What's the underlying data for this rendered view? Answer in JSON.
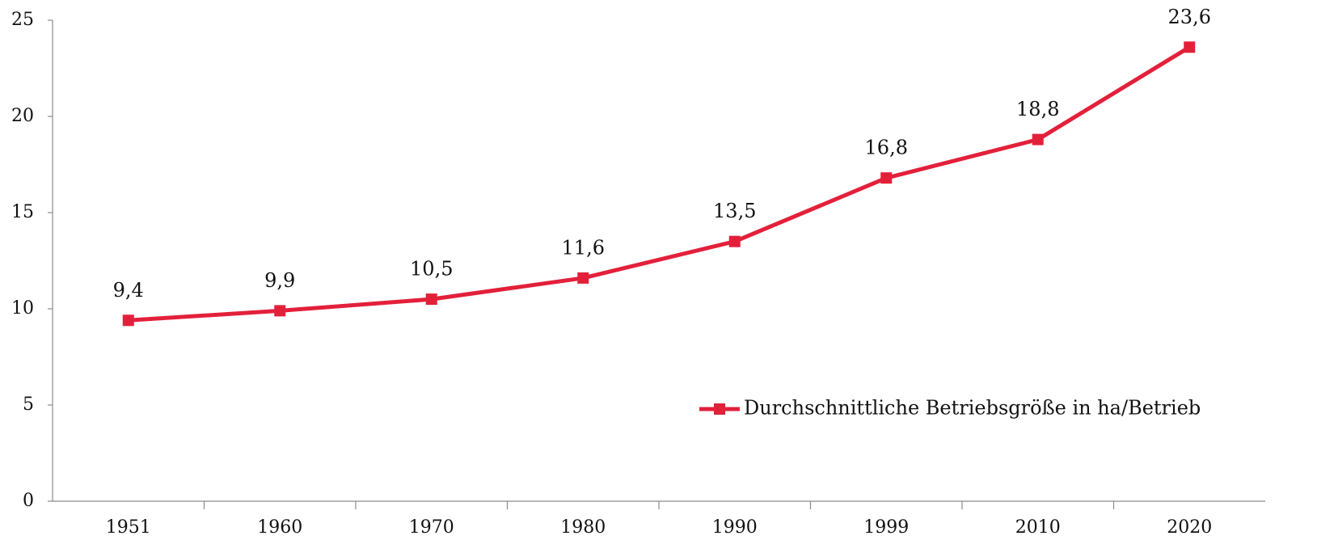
{
  "chart_data": {
    "type": "line",
    "categories": [
      "1951",
      "1960",
      "1970",
      "1980",
      "1990",
      "1999",
      "2010",
      "2020"
    ],
    "series": [
      {
        "name": "Durchschnittliche Betriebsgröße in ha/Betrieb",
        "color": "#e3203a",
        "values": [
          9.4,
          9.9,
          10.5,
          11.6,
          13.5,
          16.8,
          18.8,
          23.6
        ],
        "value_labels": [
          "9,4",
          "9,9",
          "10,5",
          "11,6",
          "13,5",
          "16,8",
          "18,8",
          "23,6"
        ]
      }
    ],
    "ylim": [
      0,
      25
    ],
    "yticks": [
      0,
      5,
      10,
      15,
      20,
      25
    ],
    "grid": false,
    "legend": "lower right",
    "marker": "square"
  }
}
